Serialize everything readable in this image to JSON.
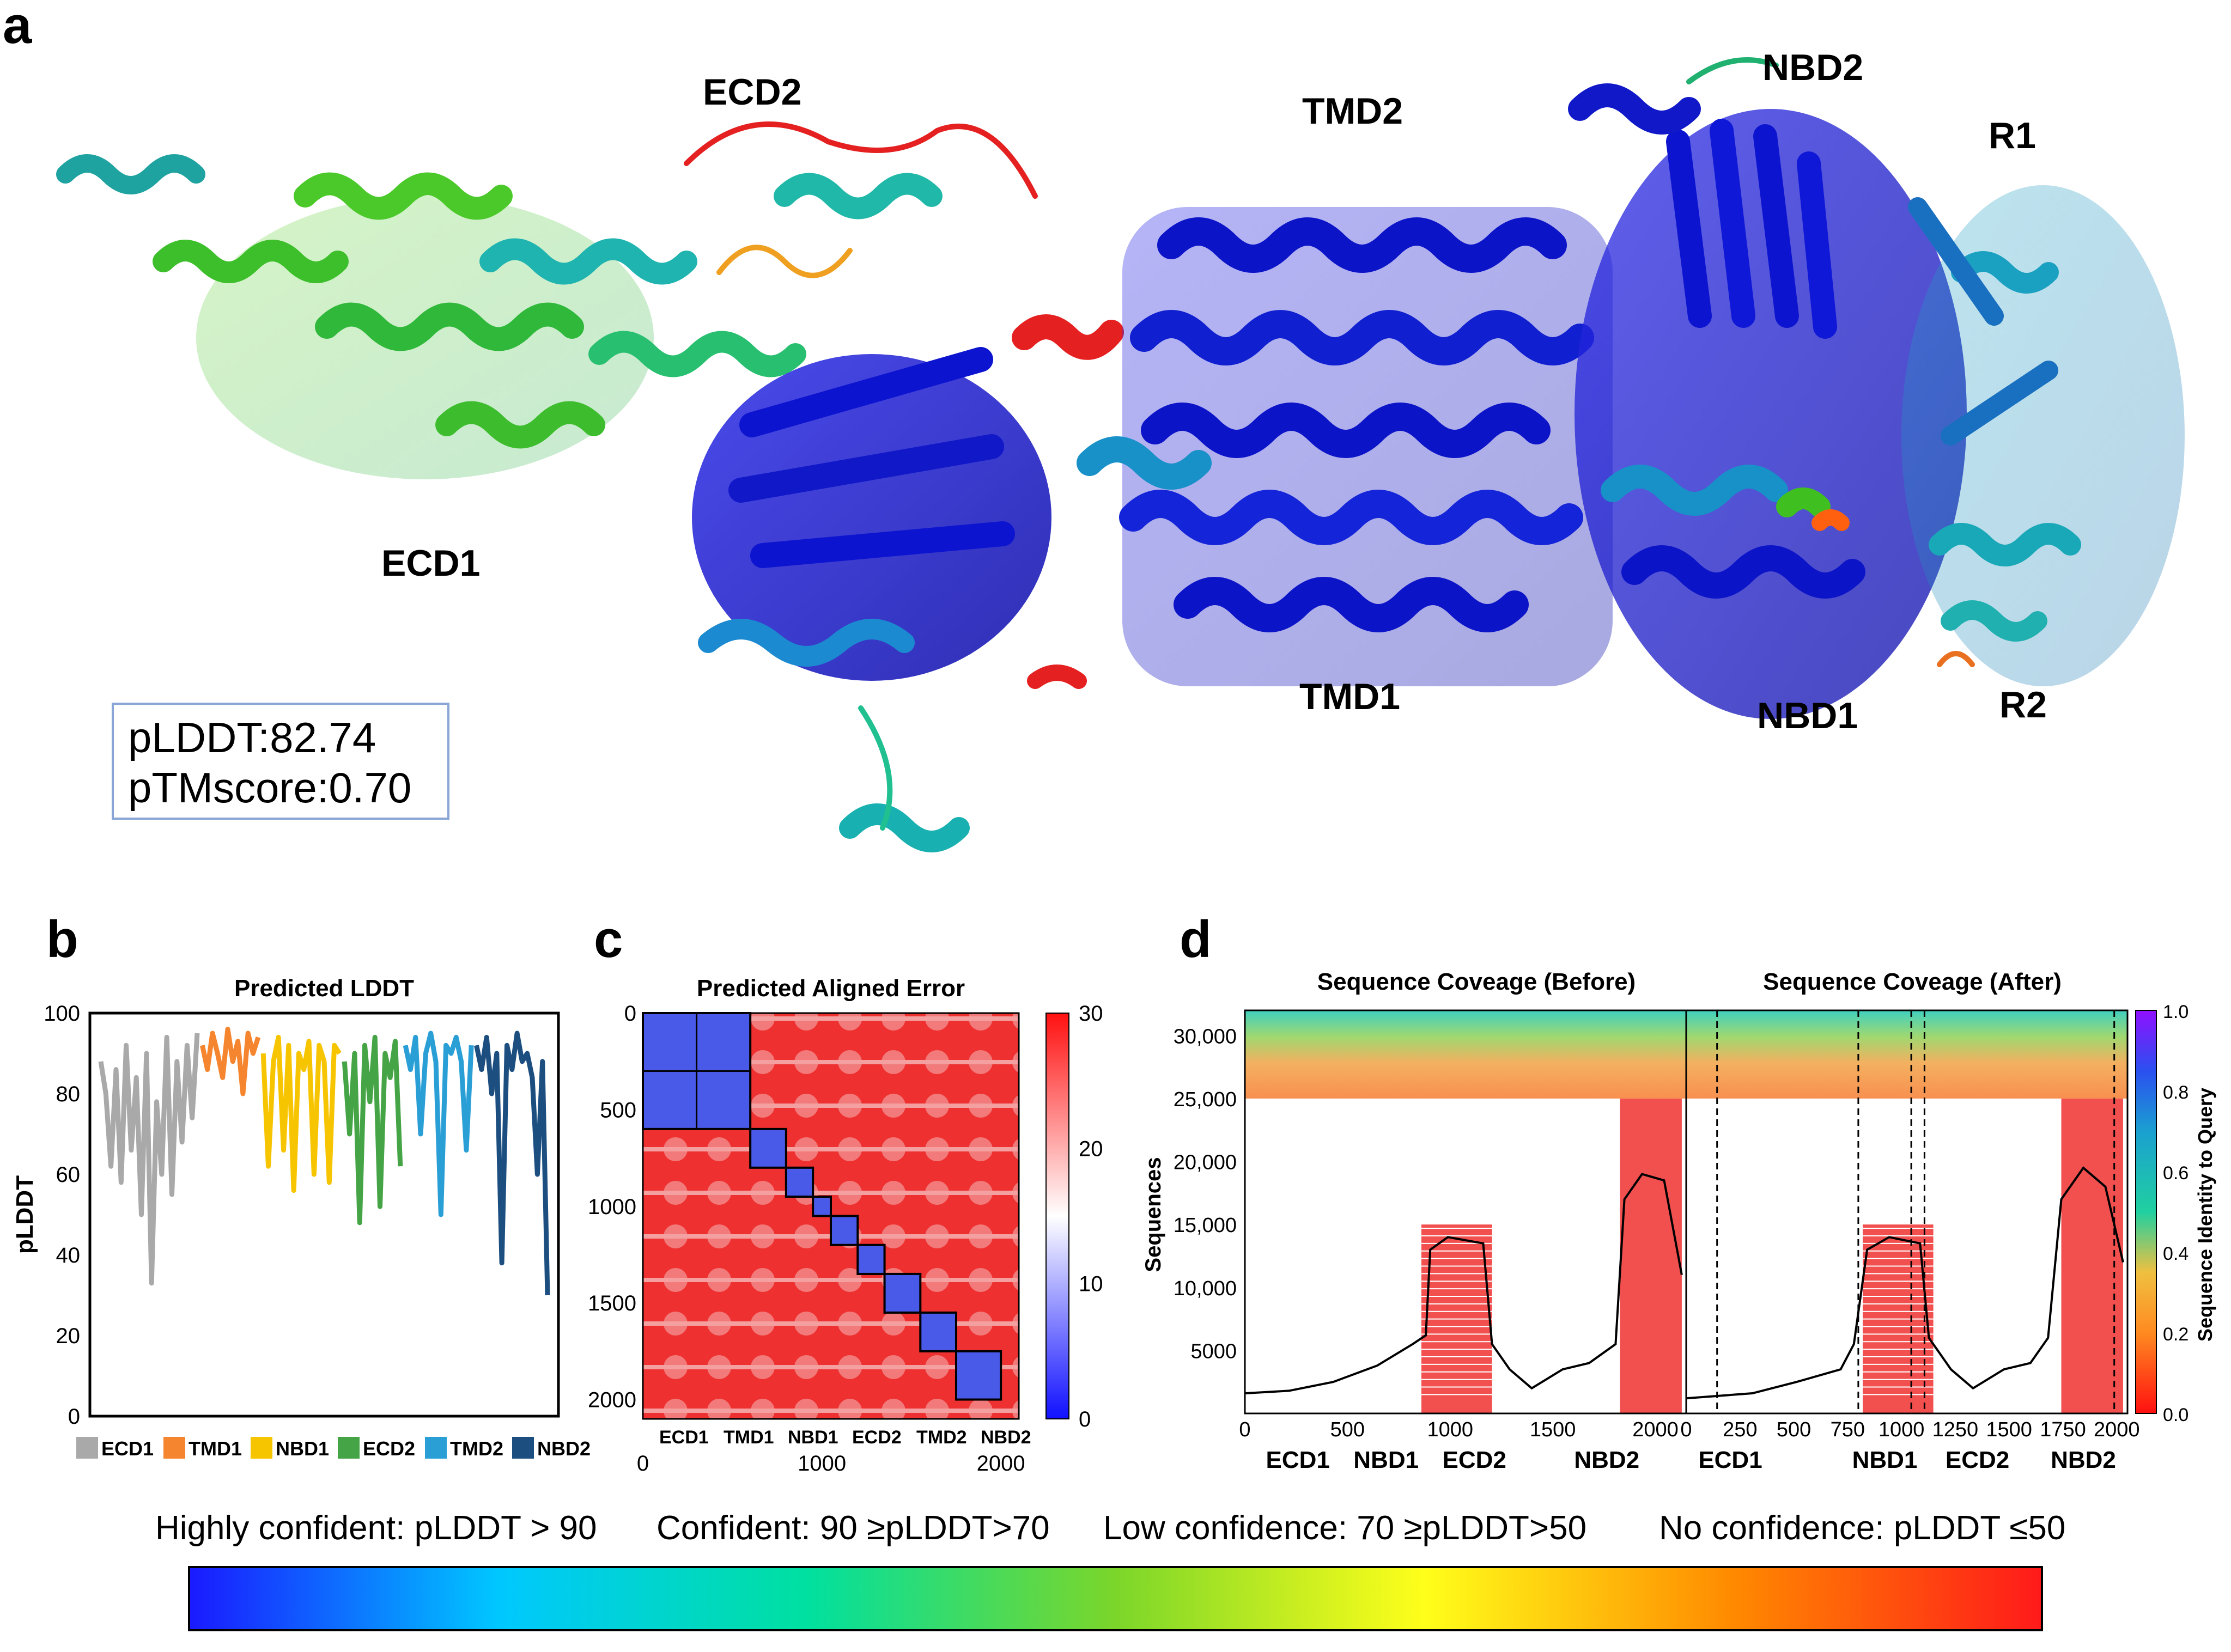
{
  "panel_a": {
    "letter": "a",
    "domains": [
      "ECD2",
      "TMD2",
      "NBD2",
      "R1",
      "ECD1",
      "TMD1",
      "NBD1",
      "R2"
    ],
    "plddt_text": "pLDDT:82.74",
    "ptm_text": "pTMscore:0.70"
  },
  "panel_b": {
    "letter": "b",
    "chart_data": {
      "type": "line",
      "title": "Predicted LDDT",
      "xlabel": "",
      "ylabel": "pLDDT",
      "ylim": [
        0,
        100
      ],
      "yticks": [
        "0",
        "20",
        "40",
        "60",
        "80",
        "100"
      ],
      "series": [
        {
          "name": "ECD1",
          "color": "#a9a9a9",
          "values": [
            88,
            80,
            62,
            86,
            58,
            92,
            66,
            84,
            50,
            90,
            33,
            78,
            60,
            94,
            55,
            88,
            68,
            92,
            74,
            95
          ]
        },
        {
          "name": "TMD1",
          "color": "#f5862f",
          "values": [
            92,
            86,
            95,
            90,
            84,
            96,
            88,
            93,
            80,
            95,
            90,
            94
          ]
        },
        {
          "name": "NBD1",
          "color": "#f7c400",
          "values": [
            90,
            62,
            88,
            94,
            66,
            92,
            56,
            90,
            86,
            93,
            60,
            92,
            88,
            58,
            92,
            90
          ]
        },
        {
          "name": "ECD2",
          "color": "#45a445",
          "values": [
            88,
            70,
            90,
            48,
            92,
            78,
            94,
            52,
            90,
            84,
            93,
            62
          ]
        },
        {
          "name": "TMD2",
          "color": "#2a9fd6",
          "values": [
            92,
            86,
            94,
            70,
            90,
            95,
            88,
            50,
            92,
            90,
            94,
            88,
            66,
            92
          ]
        },
        {
          "name": "NBD2",
          "color": "#1c4e80",
          "values": [
            92,
            86,
            94,
            80,
            90,
            38,
            92,
            86,
            95,
            88,
            90,
            84,
            60,
            88,
            30
          ]
        }
      ],
      "legend": [
        "ECD1",
        "TMD1",
        "NBD1",
        "ECD2",
        "TMD2",
        "NBD2"
      ]
    }
  },
  "panel_c": {
    "letter": "c",
    "chart_data": {
      "type": "heatmap",
      "title": "Predicted Aligned Error",
      "yticks": [
        "0",
        "500",
        "1000",
        "1500",
        "2000"
      ],
      "xticks": [
        "0",
        "1000",
        "2000"
      ],
      "domain_labels": [
        "ECD1",
        "TMD1",
        "NBD1",
        "ECD2",
        "TMD2",
        "NBD2"
      ],
      "colorbar_ticks": [
        "30",
        "20",
        "10",
        "0"
      ],
      "crange": [
        0,
        30
      ]
    }
  },
  "panel_d": {
    "letter": "d",
    "chart_data": [
      {
        "type": "heatmap",
        "title": "Sequence Coveage (Before)",
        "ylabel": "Sequences",
        "yticks": [
          "30,000",
          "25,000",
          "20,000",
          "15,000",
          "10,000",
          "5000"
        ],
        "xticks": [
          "0",
          "500",
          "1000",
          "1500",
          "2000"
        ],
        "domain_labels": [
          "ECD1",
          "NBD1",
          "ECD2",
          "NBD2"
        ]
      },
      {
        "type": "heatmap",
        "title": "Sequence Coveage (After)",
        "xticks": [
          "0",
          "250",
          "500",
          "750",
          "1000",
          "1250",
          "1500",
          "1750",
          "2000"
        ],
        "domain_labels": [
          "ECD1",
          "NBD1",
          "ECD2",
          "NBD2"
        ],
        "colorbar_label": "Sequence Identity to Query",
        "colorbar_ticks": [
          "1.0",
          "0.8",
          "0.6",
          "0.4",
          "0.2",
          "0.0"
        ]
      }
    ]
  },
  "legend": {
    "items": [
      "Highly confident: pLDDT > 90",
      "Confident: 90 ≥pLDDT>70",
      "Low confidence: 70 ≥pLDDT>50",
      "No confidence: pLDDT ≤50"
    ],
    "gradient": [
      "#1a1aff",
      "#00c8ff",
      "#00e0a0",
      "#7bd62a",
      "#ffff1a",
      "#ff8a00",
      "#ff1a1a"
    ]
  }
}
